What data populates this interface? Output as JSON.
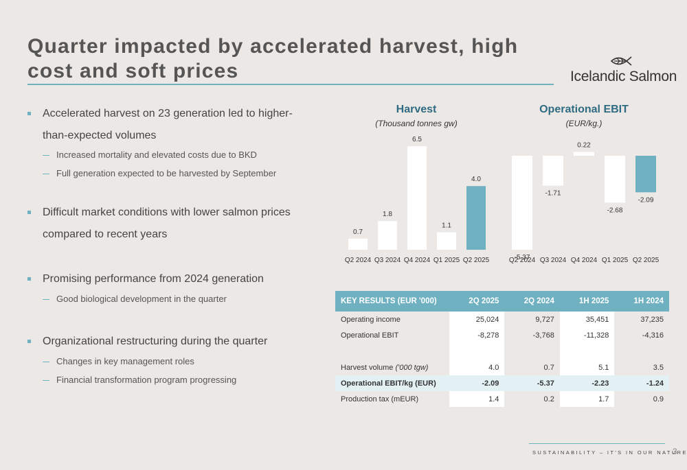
{
  "title": {
    "line1": "Quarter impacted by accelerated harvest, high",
    "line2": "cost and soft prices"
  },
  "logo": {
    "text": "Icelandic Salmon",
    "icon": "fish-leaf-logo-icon"
  },
  "bullets": [
    {
      "text": "Accelerated harvest on 23 generation led to higher-than-expected volumes",
      "subs": [
        "Increased mortality and elevated costs due to BKD",
        "Full generation expected to be harvested by September"
      ]
    },
    {
      "text": "Difficult market conditions with lower salmon prices compared to recent years",
      "subs": []
    },
    {
      "text": "Promising performance from 2024 generation",
      "subs": [
        "Good biological development in the quarter"
      ]
    },
    {
      "text": "Organizational restructuring during the quarter",
      "subs": [
        "Changes in key management roles",
        "Financial transformation program progressing"
      ]
    }
  ],
  "chart_data": [
    {
      "type": "bar",
      "title": "Harvest",
      "subtitle": "(Thousand tonnes gw)",
      "categories": [
        "Q2 2024",
        "Q3 2024",
        "Q4 2024",
        "Q1 2025",
        "Q2 2025"
      ],
      "values": [
        0.7,
        1.8,
        6.5,
        1.1,
        4.0
      ],
      "labels": [
        "0.7",
        "1.8",
        "6.5",
        "1.1",
        "4.0"
      ],
      "highlight_index": 4,
      "colors": {
        "bar": "#ffffff",
        "highlight": "#6fb1c1"
      }
    },
    {
      "type": "bar",
      "title": "Operational EBIT",
      "subtitle": "(EUR/kg.)",
      "categories": [
        "Q2 2024",
        "Q3 2024",
        "Q4 2024",
        "Q1 2025",
        "Q2 2025"
      ],
      "values": [
        -5.37,
        -1.71,
        0.22,
        -2.68,
        -2.09
      ],
      "labels": [
        "-5.37",
        "-1.71",
        "0.22",
        "-2.68",
        "-2.09"
      ],
      "highlight_index": 4,
      "colors": {
        "bar": "#ffffff",
        "highlight": "#6fb1c1"
      }
    }
  ],
  "table": {
    "headers": [
      "KEY RESULTS (EUR '000)",
      "2Q 2025",
      "2Q 2024",
      "1H 2025",
      "1H 2024"
    ],
    "rows": [
      {
        "label": "Operating income",
        "label_suffix": "",
        "values": [
          "25,024",
          "9,727",
          "35,451",
          "37,235"
        ]
      },
      {
        "label": "Operational EBIT",
        "label_suffix": "",
        "values": [
          "-8,278",
          "-3,768",
          "-11,328",
          "-4,316"
        ]
      },
      {
        "label": "",
        "label_suffix": "",
        "values": [
          "",
          "",
          "",
          ""
        ]
      },
      {
        "label": "Harvest volume ",
        "label_suffix": "('000 tgw)",
        "values": [
          "4.0",
          "0.7",
          "5.1",
          "3.5"
        ]
      },
      {
        "label": "Operational EBIT/kg (EUR)",
        "label_suffix": "",
        "values": [
          "-2.09",
          "-5.37",
          "-2.23",
          "-1.24"
        ]
      },
      {
        "label": "Production tax (mEUR)",
        "label_suffix": "",
        "values": [
          "1.4",
          "0.2",
          "1.7",
          "0.9"
        ]
      }
    ]
  },
  "footer": {
    "tagline": "SUSTAINABILITY – IT'S IN OUR NATURE",
    "page": "3"
  }
}
